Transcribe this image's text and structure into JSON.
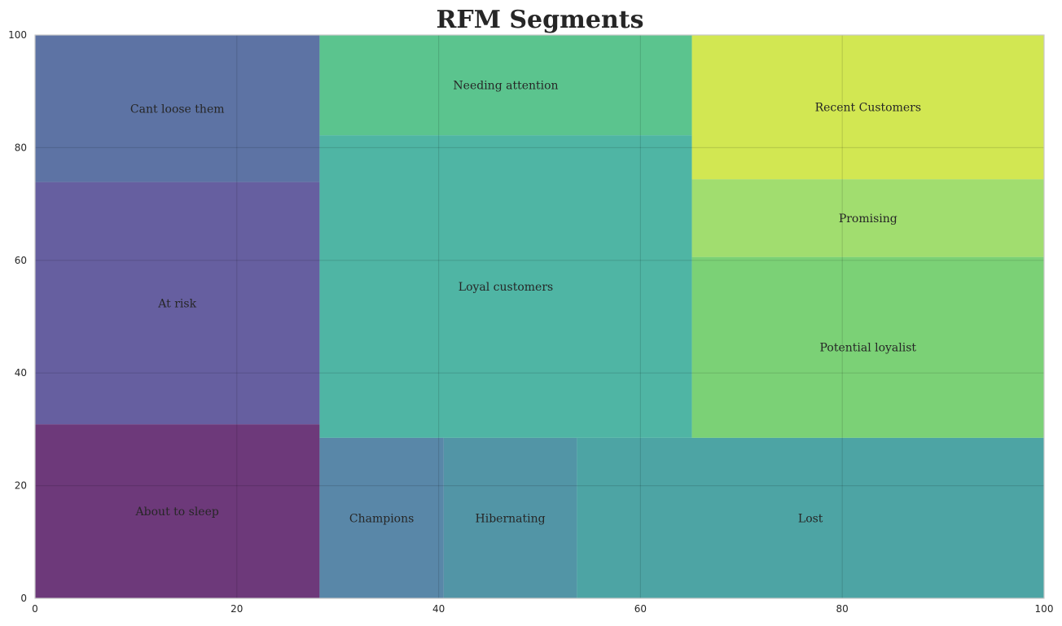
{
  "chart_data": {
    "type": "treemap",
    "title": "RFM Segments",
    "xlim": [
      0,
      100
    ],
    "ylim": [
      0,
      100
    ],
    "xticks": [
      0,
      20,
      40,
      60,
      80,
      100
    ],
    "yticks": [
      0,
      20,
      40,
      60,
      80,
      100
    ],
    "grid": true,
    "xlabel": "",
    "ylabel": "",
    "segments": [
      {
        "label": "About to sleep",
        "x": 0,
        "y": 0,
        "dx": 28.2,
        "dy": 30.9,
        "color": "#440154"
      },
      {
        "label": "At risk",
        "x": 0,
        "y": 30.9,
        "dx": 28.2,
        "dy": 43.0,
        "color": "#3b3285"
      },
      {
        "label": "Cant loose them",
        "x": 0,
        "y": 73.9,
        "dx": 28.2,
        "dy": 26.1,
        "color": "#2f4b8a"
      },
      {
        "label": "Champions",
        "x": 28.2,
        "y": 0,
        "dx": 12.3,
        "dy": 28.5,
        "color": "#2a6590"
      },
      {
        "label": "Hibernating",
        "x": 40.5,
        "y": 0,
        "dx": 13.2,
        "dy": 28.5,
        "color": "#21778d"
      },
      {
        "label": "Lost",
        "x": 53.7,
        "y": 0,
        "dx": 46.3,
        "dy": 28.5,
        "color": "#1b8a8a"
      },
      {
        "label": "Loyal customers",
        "x": 28.2,
        "y": 28.5,
        "dx": 36.9,
        "dy": 53.7,
        "color": "#1ea08a"
      },
      {
        "label": "Needing attention",
        "x": 28.2,
        "y": 82.2,
        "dx": 36.9,
        "dy": 17.8,
        "color": "#2db46e"
      },
      {
        "label": "Potential loyalist",
        "x": 65.1,
        "y": 28.5,
        "dx": 34.9,
        "dy": 32.1,
        "color": "#56c44f"
      },
      {
        "label": "Promising",
        "x": 65.1,
        "y": 60.6,
        "dx": 34.9,
        "dy": 13.8,
        "color": "#86d347"
      },
      {
        "label": "Recent Customers",
        "x": 65.1,
        "y": 74.4,
        "dx": 34.9,
        "dy": 25.6,
        "color": "#c5e021"
      }
    ]
  }
}
